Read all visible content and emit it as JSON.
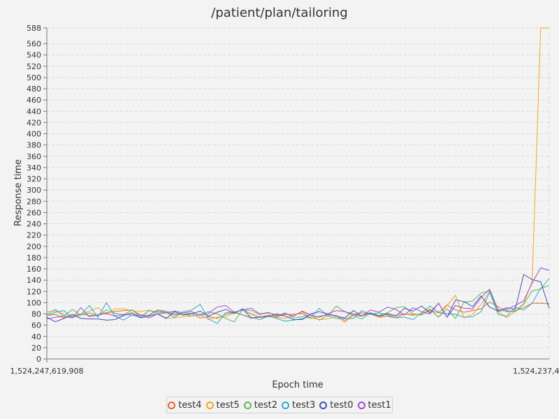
{
  "chart_data": {
    "type": "line",
    "title": "/patient/plan/tailoring",
    "xlabel": "Epoch time",
    "ylabel": "Response time",
    "ylim": [
      0,
      588
    ],
    "y_ticks": [
      0,
      20,
      40,
      60,
      80,
      100,
      120,
      140,
      160,
      180,
      200,
      220,
      240,
      260,
      280,
      300,
      320,
      340,
      360,
      380,
      400,
      420,
      440,
      460,
      480,
      500,
      520,
      540,
      560,
      588
    ],
    "x_tick_labels": [
      "1,524,247,619,908",
      "1,524,237,4"
    ],
    "grid": true,
    "legend_position": "bottom",
    "series": [
      {
        "name": "test4",
        "color": "#e8662e",
        "values": [
          77,
          79,
          73,
          76,
          80,
          77,
          78,
          82,
          84,
          86,
          87,
          78,
          77,
          86,
          83,
          78,
          80,
          81,
          73,
          75,
          72,
          79,
          83,
          87,
          80,
          74,
          78,
          75,
          79,
          79,
          81,
          72,
          76,
          78,
          77,
          68,
          79,
          82,
          80,
          74,
          76,
          73,
          80,
          79,
          79,
          86,
          82,
          96,
          87,
          83,
          86,
          89,
          101,
          93,
          84,
          86,
          91,
          99,
          99,
          98
        ]
      },
      {
        "name": "test5",
        "color": "#f5a524",
        "values": [
          84,
          85,
          80,
          73,
          80,
          85,
          91,
          79,
          89,
          89,
          86,
          84,
          87,
          80,
          73,
          73,
          75,
          76,
          80,
          70,
          74,
          75,
          82,
          78,
          72,
          76,
          75,
          74,
          72,
          77,
          84,
          73,
          70,
          71,
          76,
          65,
          78,
          76,
          82,
          74,
          81,
          77,
          80,
          77,
          81,
          89,
          74,
          95,
          113,
          73,
          79,
          97,
          120,
          84,
          73,
          85,
          98,
          138,
          588,
          588
        ]
      },
      {
        "name": "test2",
        "color": "#5cb85c",
        "values": [
          79,
          88,
          76,
          88,
          78,
          82,
          77,
          87,
          81,
          78,
          87,
          75,
          78,
          87,
          85,
          80,
          80,
          76,
          79,
          84,
          80,
          72,
          66,
          88,
          86,
          79,
          83,
          76,
          82,
          73,
          75,
          78,
          69,
          77,
          94,
          84,
          77,
          71,
          81,
          77,
          82,
          91,
          93,
          80,
          78,
          88,
          74,
          89,
          72,
          101,
          103,
          117,
          121,
          85,
          86,
          84,
          97,
          121,
          124,
          143
        ]
      },
      {
        "name": "test3",
        "color": "#31a9c9",
        "values": [
          77,
          83,
          86,
          74,
          78,
          95,
          74,
          100,
          76,
          69,
          78,
          74,
          86,
          83,
          83,
          74,
          84,
          87,
          97,
          71,
          63,
          82,
          84,
          78,
          74,
          70,
          76,
          72,
          67,
          69,
          72,
          74,
          90,
          76,
          72,
          72,
          72,
          86,
          79,
          82,
          78,
          73,
          74,
          70,
          82,
          94,
          83,
          80,
          79,
          74,
          75,
          84,
          119,
          79,
          76,
          92,
          87,
          99,
          126,
          130
        ]
      },
      {
        "name": "test0",
        "color": "#3f51b5",
        "values": [
          74,
          66,
          72,
          79,
          72,
          71,
          71,
          69,
          70,
          77,
          82,
          73,
          76,
          80,
          72,
          84,
          78,
          80,
          85,
          76,
          83,
          88,
          81,
          89,
          73,
          74,
          75,
          80,
          76,
          70,
          70,
          80,
          84,
          80,
          76,
          73,
          86,
          76,
          82,
          76,
          80,
          76,
          90,
          85,
          94,
          82,
          99,
          74,
          105,
          102,
          93,
          112,
          92,
          85,
          91,
          88,
          150,
          141,
          137,
          90
        ]
      },
      {
        "name": "test1",
        "color": "#9c4fd0",
        "values": [
          71,
          74,
          76,
          73,
          91,
          75,
          78,
          81,
          76,
          79,
          78,
          78,
          73,
          80,
          82,
          85,
          82,
          84,
          77,
          81,
          92,
          95,
          83,
          87,
          90,
          80,
          82,
          78,
          80,
          76,
          85,
          78,
          74,
          80,
          86,
          84,
          80,
          76,
          87,
          83,
          92,
          88,
          78,
          91,
          84,
          80,
          99,
          74,
          95,
          90,
          89,
          109,
          124,
          87,
          88,
          95,
          103,
          135,
          162,
          157
        ]
      }
    ]
  }
}
